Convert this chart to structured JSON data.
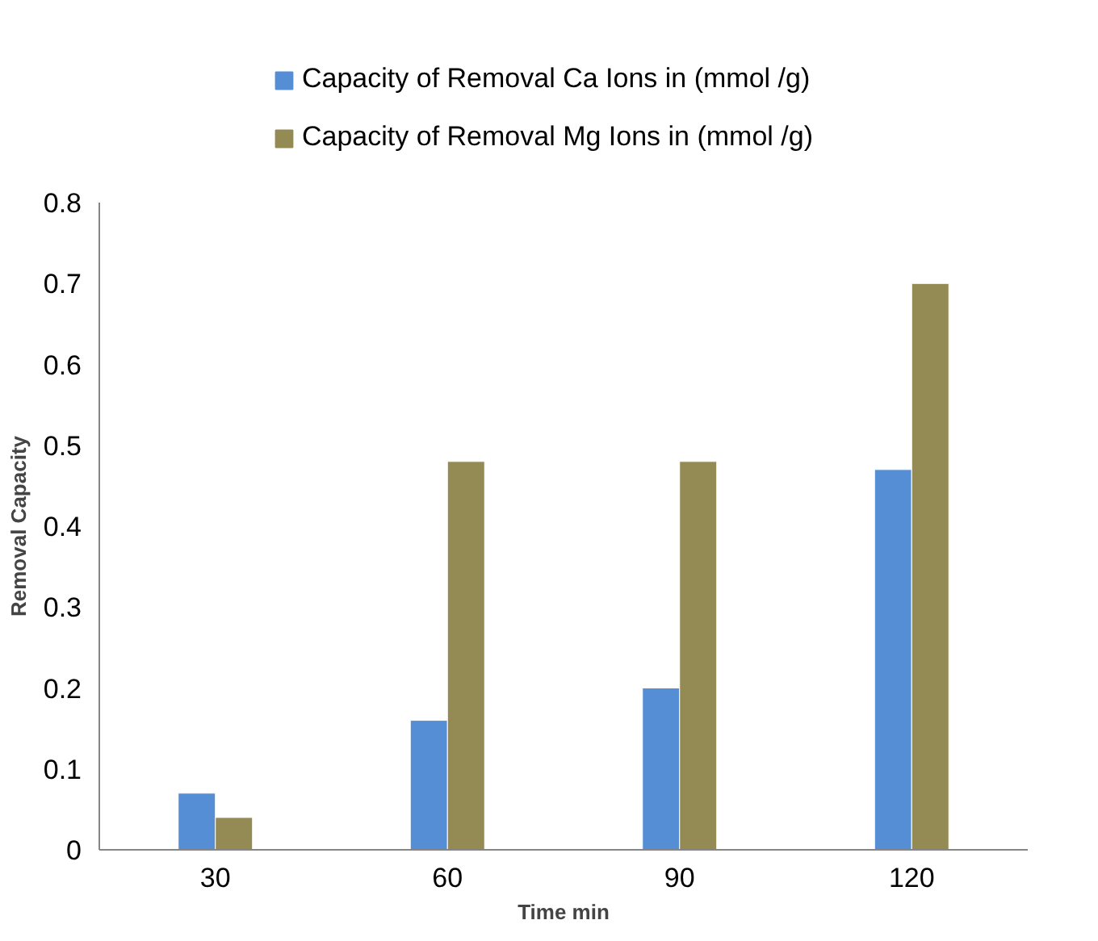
{
  "chart_data": {
    "type": "bar",
    "xlabel": "Time min",
    "ylabel": "Removal Capacity",
    "categories": [
      "30",
      "60",
      "90",
      "120"
    ],
    "series": [
      {
        "name": "Capacity of Removal Ca Ions in (mmol /g)",
        "color": "#558ed5",
        "values": [
          0.07,
          0.16,
          0.2,
          0.47
        ]
      },
      {
        "name": "Capacity of Removal Mg Ions in (mmol /g)",
        "color": "#948a54",
        "values": [
          0.04,
          0.48,
          0.48,
          0.7
        ]
      }
    ],
    "ylim": [
      0,
      0.8
    ],
    "yticks": [
      0,
      0.1,
      0.2,
      0.3,
      0.4,
      0.5,
      0.6,
      0.7,
      0.8
    ],
    "grid": false,
    "legend": "top"
  }
}
